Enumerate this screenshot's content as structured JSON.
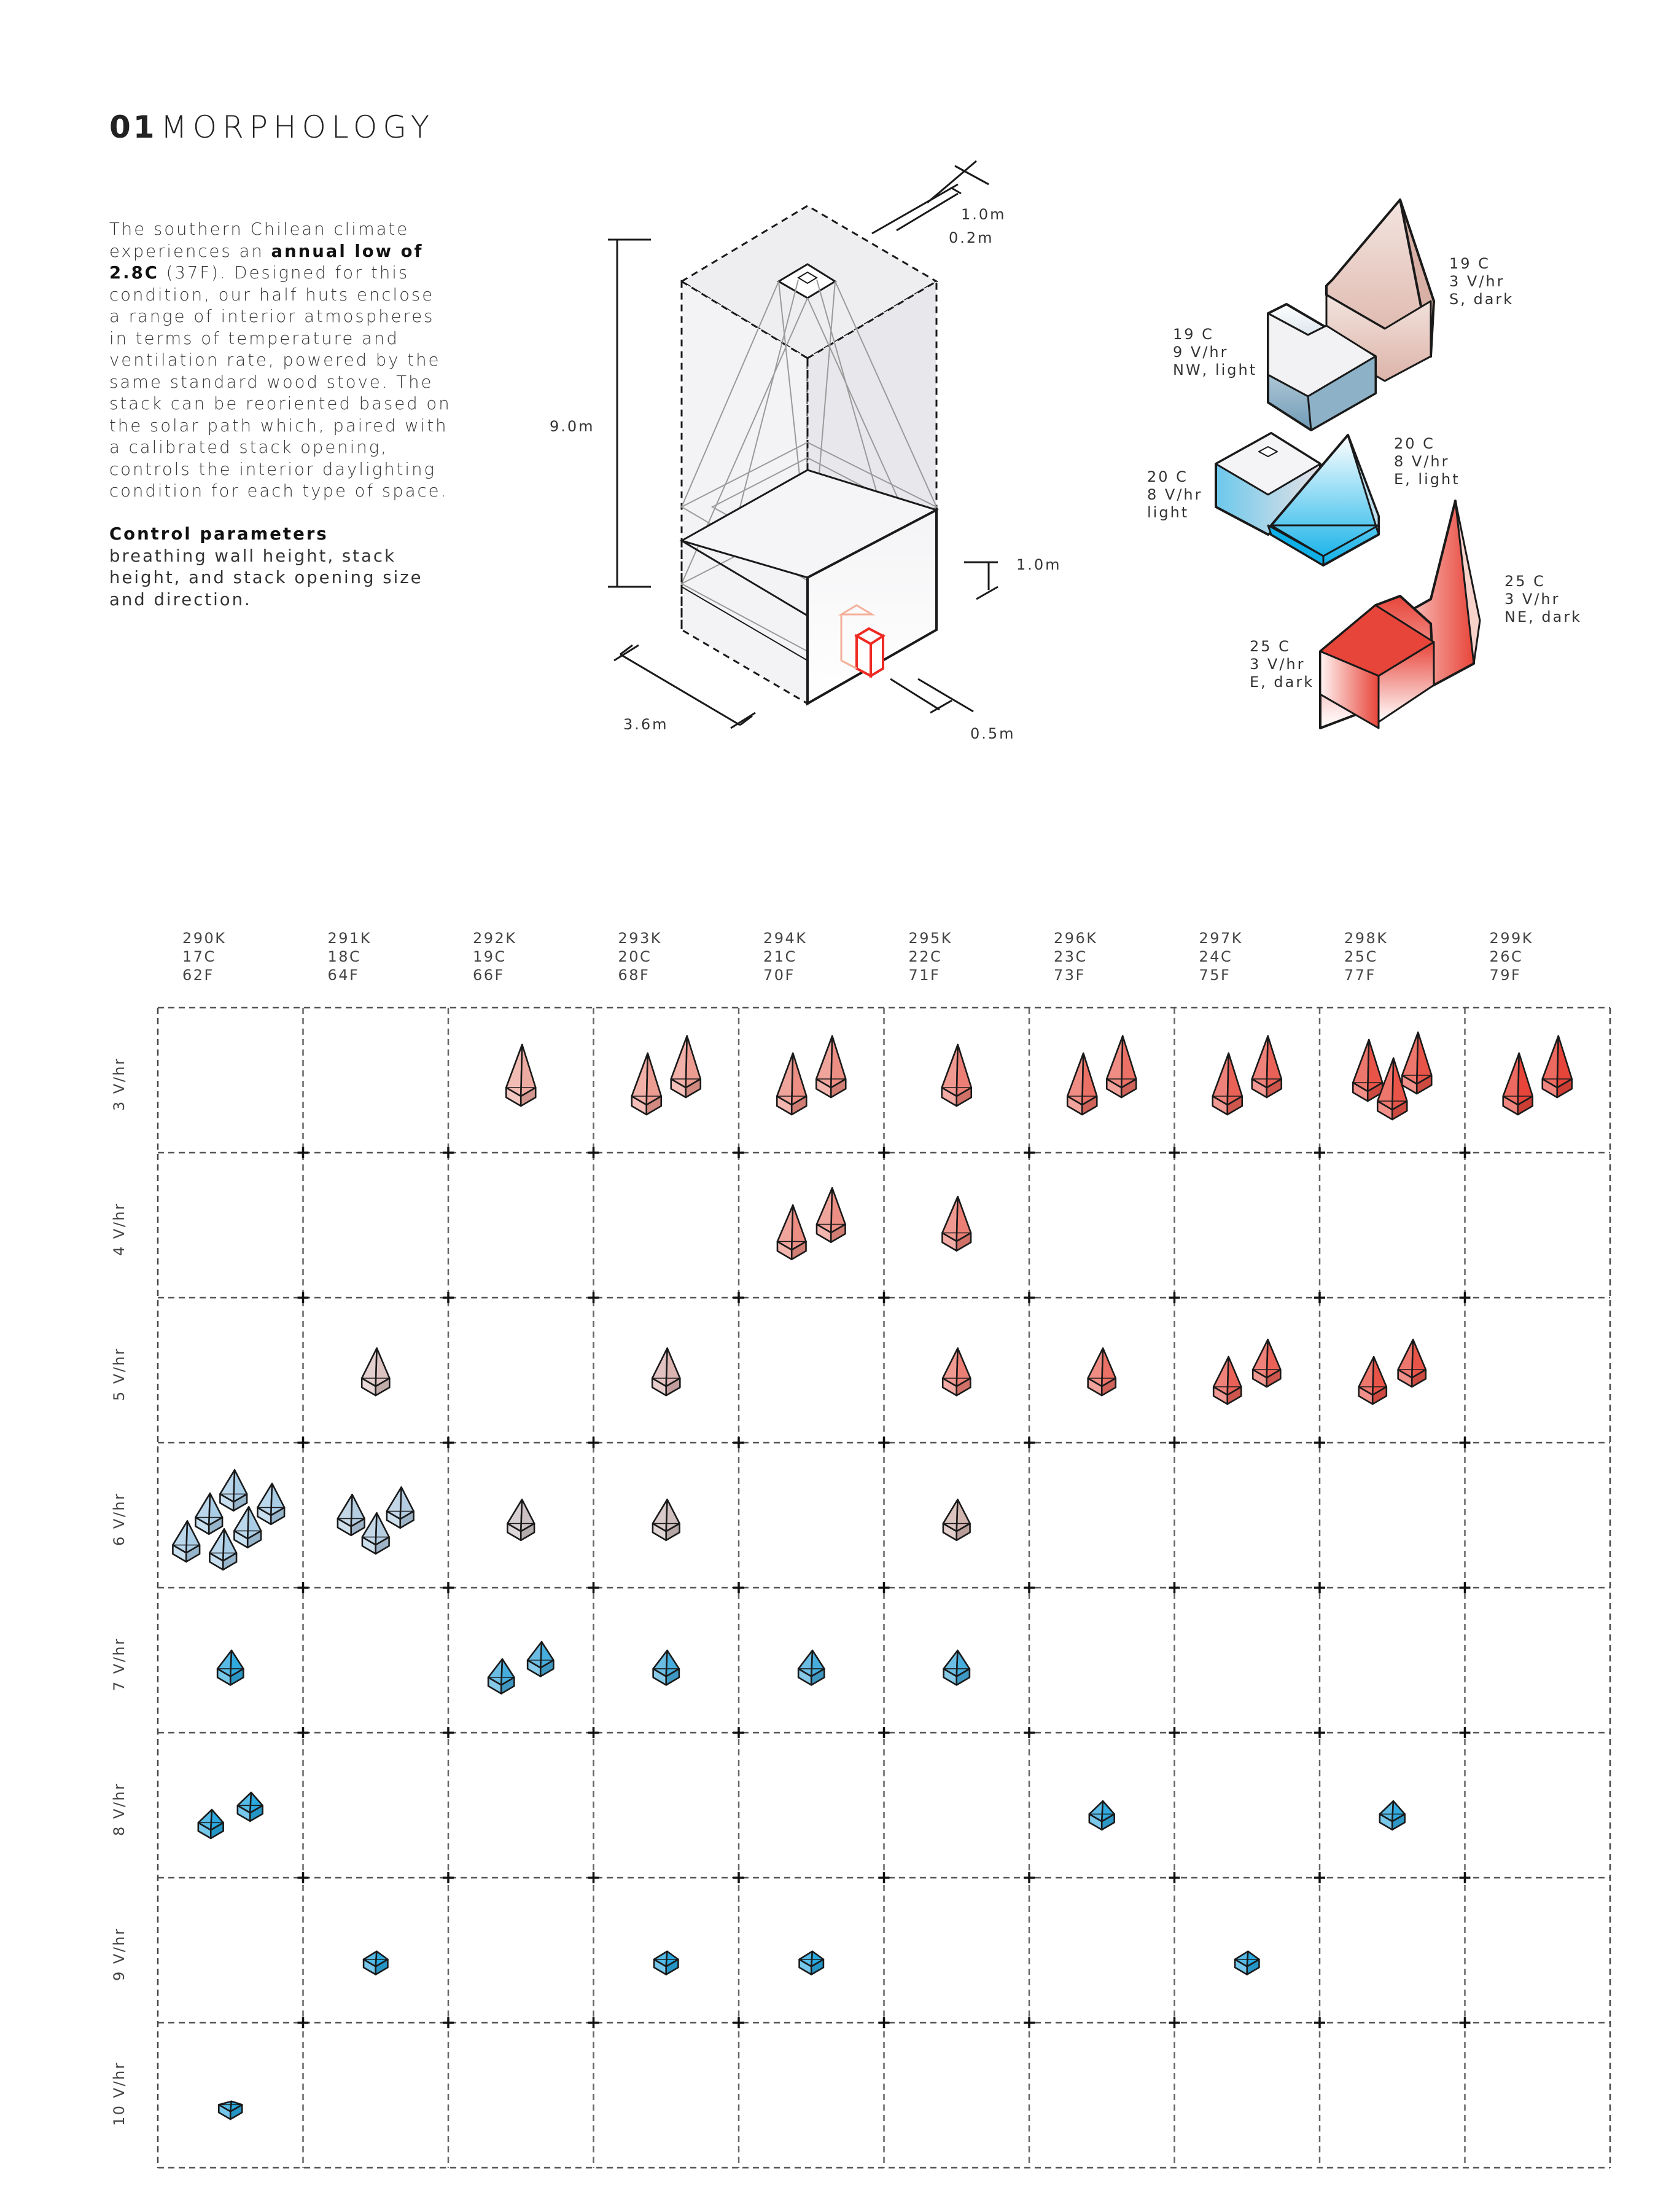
{
  "header": {
    "number": "01",
    "title": "MORPHOLOGY"
  },
  "intro": {
    "pre": "The southern Chilean climate experiences an ",
    "bold": "annual low of 2.8C",
    "post": " (37F). Designed for this condition, our half huts enclose a range of interior atmospheres in terms of temperature and ventilation rate, powered by the same standard wood stove. The stack can be reoriented based on the solar path which, paired with a calibrated stack opening, controls the interior daylighting condition for each type of space."
  },
  "control": {
    "heading": "Control parameters",
    "text": "breathing wall height, stack height, and stack opening size and direction."
  },
  "dimensions": {
    "stack_width": "1.0m",
    "stack_depth": "0.2m",
    "height": "9.0m",
    "wall_height": "1.0m",
    "base": "3.6m",
    "offset": "0.5m"
  },
  "examples": [
    {
      "temp": "19 C",
      "rate": "3 V/hr",
      "cond": "S, dark"
    },
    {
      "temp": "19 C",
      "rate": "9 V/hr",
      "cond": "NW, light"
    },
    {
      "temp": "20 C",
      "rate": "8 V/hr",
      "cond": "E, light"
    },
    {
      "temp": "20 C",
      "rate": "8 V/hr",
      "cond": "light"
    },
    {
      "temp": "25 C",
      "rate": "3 V/hr",
      "cond": "NE, dark"
    },
    {
      "temp": "25 C",
      "rate": "3 V/hr",
      "cond": "E, dark"
    }
  ],
  "grid": {
    "columns": [
      {
        "k": "290K",
        "c": "17C",
        "f": "62F"
      },
      {
        "k": "291K",
        "c": "18C",
        "f": "64F"
      },
      {
        "k": "292K",
        "c": "19C",
        "f": "66F"
      },
      {
        "k": "293K",
        "c": "20C",
        "f": "68F"
      },
      {
        "k": "294K",
        "c": "21C",
        "f": "70F"
      },
      {
        "k": "295K",
        "c": "22C",
        "f": "71F"
      },
      {
        "k": "296K",
        "c": "23C",
        "f": "73F"
      },
      {
        "k": "297K",
        "c": "24C",
        "f": "75F"
      },
      {
        "k": "298K",
        "c": "25C",
        "f": "77F"
      },
      {
        "k": "299K",
        "c": "26C",
        "f": "79F"
      }
    ],
    "rows": [
      "3 V/hr",
      "4 V/hr",
      "5 V/hr",
      "6 V/hr",
      "7 V/hr",
      "8 V/hr",
      "9 V/hr",
      "10 V/hr"
    ],
    "glyph_counts": [
      [
        0,
        0,
        1,
        2,
        2,
        1,
        2,
        2,
        3,
        2
      ],
      [
        0,
        0,
        0,
        0,
        2,
        1,
        0,
        0,
        0,
        0
      ],
      [
        0,
        1,
        0,
        1,
        0,
        1,
        1,
        2,
        2,
        0
      ],
      [
        6,
        3,
        1,
        1,
        0,
        1,
        0,
        0,
        0,
        0
      ],
      [
        1,
        0,
        2,
        1,
        1,
        1,
        0,
        0,
        0,
        0
      ],
      [
        2,
        0,
        0,
        0,
        0,
        0,
        1,
        0,
        1,
        0
      ],
      [
        0,
        1,
        0,
        1,
        1,
        0,
        0,
        1,
        0,
        0
      ],
      [
        1,
        0,
        0,
        0,
        0,
        0,
        0,
        0,
        0,
        0
      ]
    ]
  },
  "colors": {
    "warm": "#e8453a",
    "cool": "#2aa9e0",
    "neutral": "#c8ccd2",
    "line": "#1a1a1a"
  }
}
